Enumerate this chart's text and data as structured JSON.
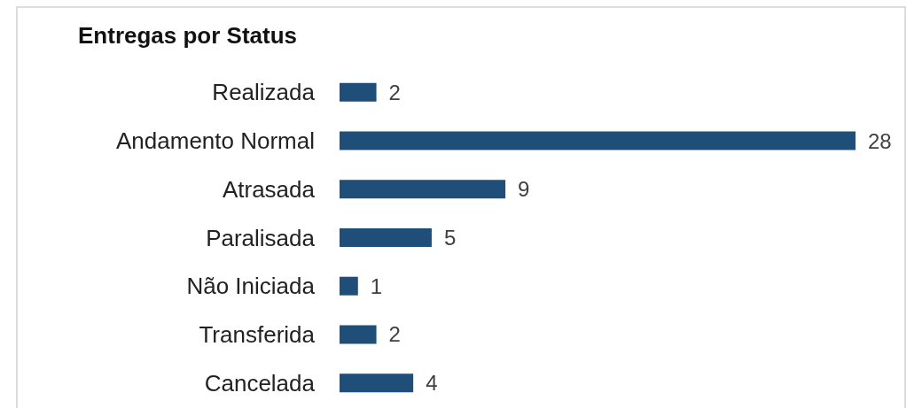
{
  "chart_data": {
    "type": "bar",
    "title": "Entregas por Status",
    "orientation": "horizontal",
    "categories": [
      "Realizada",
      "Andamento Normal",
      "Atrasada",
      "Paralisada",
      "Não Iniciada",
      "Transferida",
      "Cancelada"
    ],
    "values": [
      2,
      28,
      9,
      5,
      1,
      2,
      4
    ],
    "color": "#1f4e79",
    "data_labels": true
  }
}
